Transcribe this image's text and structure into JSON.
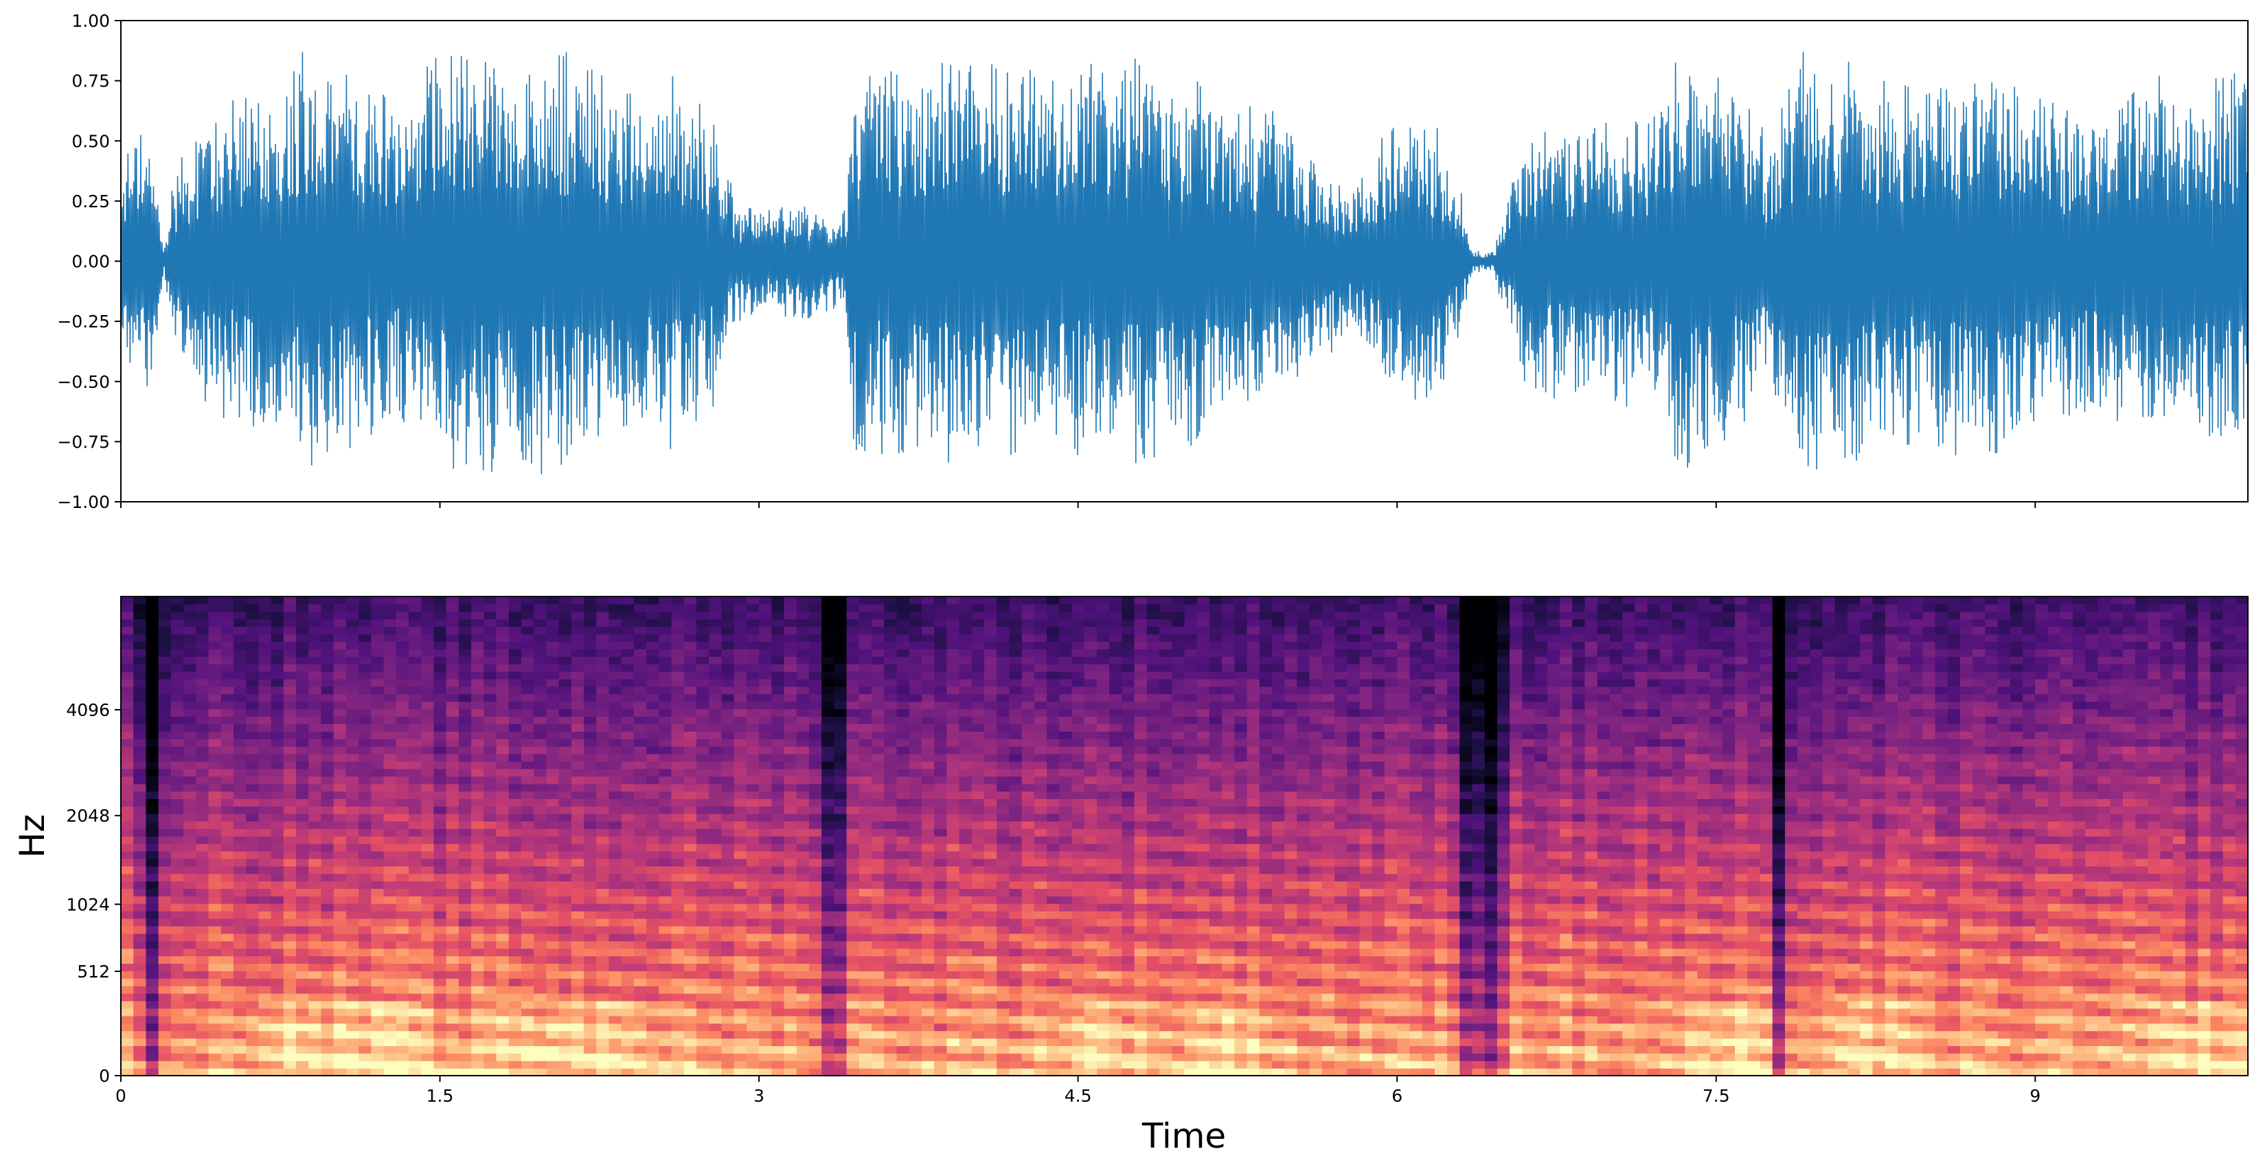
{
  "chart_data": [
    {
      "type": "line",
      "title": "",
      "xlabel": "",
      "ylabel": "",
      "xlim": [
        0,
        10
      ],
      "ylim": [
        -1.0,
        1.0
      ],
      "y_ticks": [
        "1.00",
        "0.75",
        "0.50",
        "0.25",
        "0.00",
        "−0.25",
        "−0.50",
        "−0.75",
        "−1.00"
      ],
      "y_tick_values": [
        1.0,
        0.75,
        0.5,
        0.25,
        0.0,
        -0.25,
        -0.5,
        -0.75,
        -1.0
      ],
      "x_tick_values": [
        0,
        1.5,
        3,
        4.5,
        6,
        7.5,
        9
      ],
      "x_tick_labels_shown": false,
      "color": "#1f77b4",
      "series": [
        {
          "x": [
            0.0,
            0.05,
            0.1,
            0.15,
            0.2,
            0.25,
            0.4,
            0.6,
            0.85,
            1.0,
            1.3,
            1.45,
            1.6,
            1.8,
            2.0,
            2.2,
            2.4,
            2.6,
            2.8,
            2.9,
            3.05,
            3.2,
            3.4,
            3.45,
            3.6,
            3.8,
            4.0,
            4.2,
            4.4,
            4.6,
            4.8,
            5.0,
            5.2,
            5.4,
            5.6,
            5.8,
            6.0,
            6.2,
            6.3,
            6.35,
            6.45,
            6.6,
            6.9,
            7.2,
            7.3,
            7.5,
            7.65,
            7.75,
            7.9,
            8.1,
            8.3,
            8.5,
            8.7,
            8.9,
            9.1,
            9.3,
            9.5,
            9.7,
            9.9,
            10.0
          ],
          "envelope": [
            0.3,
            0.58,
            0.65,
            0.45,
            0.05,
            0.38,
            0.62,
            0.7,
            0.9,
            0.88,
            0.65,
            0.85,
            0.9,
            0.88,
            0.9,
            0.85,
            0.75,
            0.8,
            0.6,
            0.25,
            0.22,
            0.25,
            0.2,
            0.85,
            0.8,
            0.85,
            0.85,
            0.82,
            0.78,
            0.85,
            0.88,
            0.8,
            0.65,
            0.65,
            0.45,
            0.3,
            0.65,
            0.55,
            0.3,
            0.05,
            0.04,
            0.55,
            0.6,
            0.62,
            0.88,
            0.85,
            0.7,
            0.5,
            0.88,
            0.85,
            0.78,
            0.75,
            0.85,
            0.82,
            0.65,
            0.62,
            0.8,
            0.75,
            0.78,
            0.8
          ]
        }
      ]
    },
    {
      "type": "heatmap",
      "title": "",
      "xlabel": "Time",
      "ylabel": "Hz",
      "xlim": [
        0,
        10
      ],
      "y_scale": "mel",
      "ylim": [
        0,
        8000
      ],
      "colormap": "magma",
      "x_ticks": [
        "0",
        "1.5",
        "3",
        "4.5",
        "6",
        "7.5",
        "9"
      ],
      "x_tick_values": [
        0,
        1.5,
        3,
        4.5,
        6,
        7.5,
        9
      ],
      "y_ticks": [
        "0",
        "512",
        "1024",
        "2048",
        "4096"
      ],
      "y_tick_values": [
        0,
        512,
        1024,
        2048,
        4096
      ],
      "quiet_times": [
        0.15,
        3.35,
        6.35,
        6.45,
        7.8
      ],
      "loud_low_band_times": [
        0.8,
        1.2,
        1.9,
        2.3,
        4.6,
        5.2,
        7.6,
        8.2,
        9.8
      ]
    }
  ]
}
